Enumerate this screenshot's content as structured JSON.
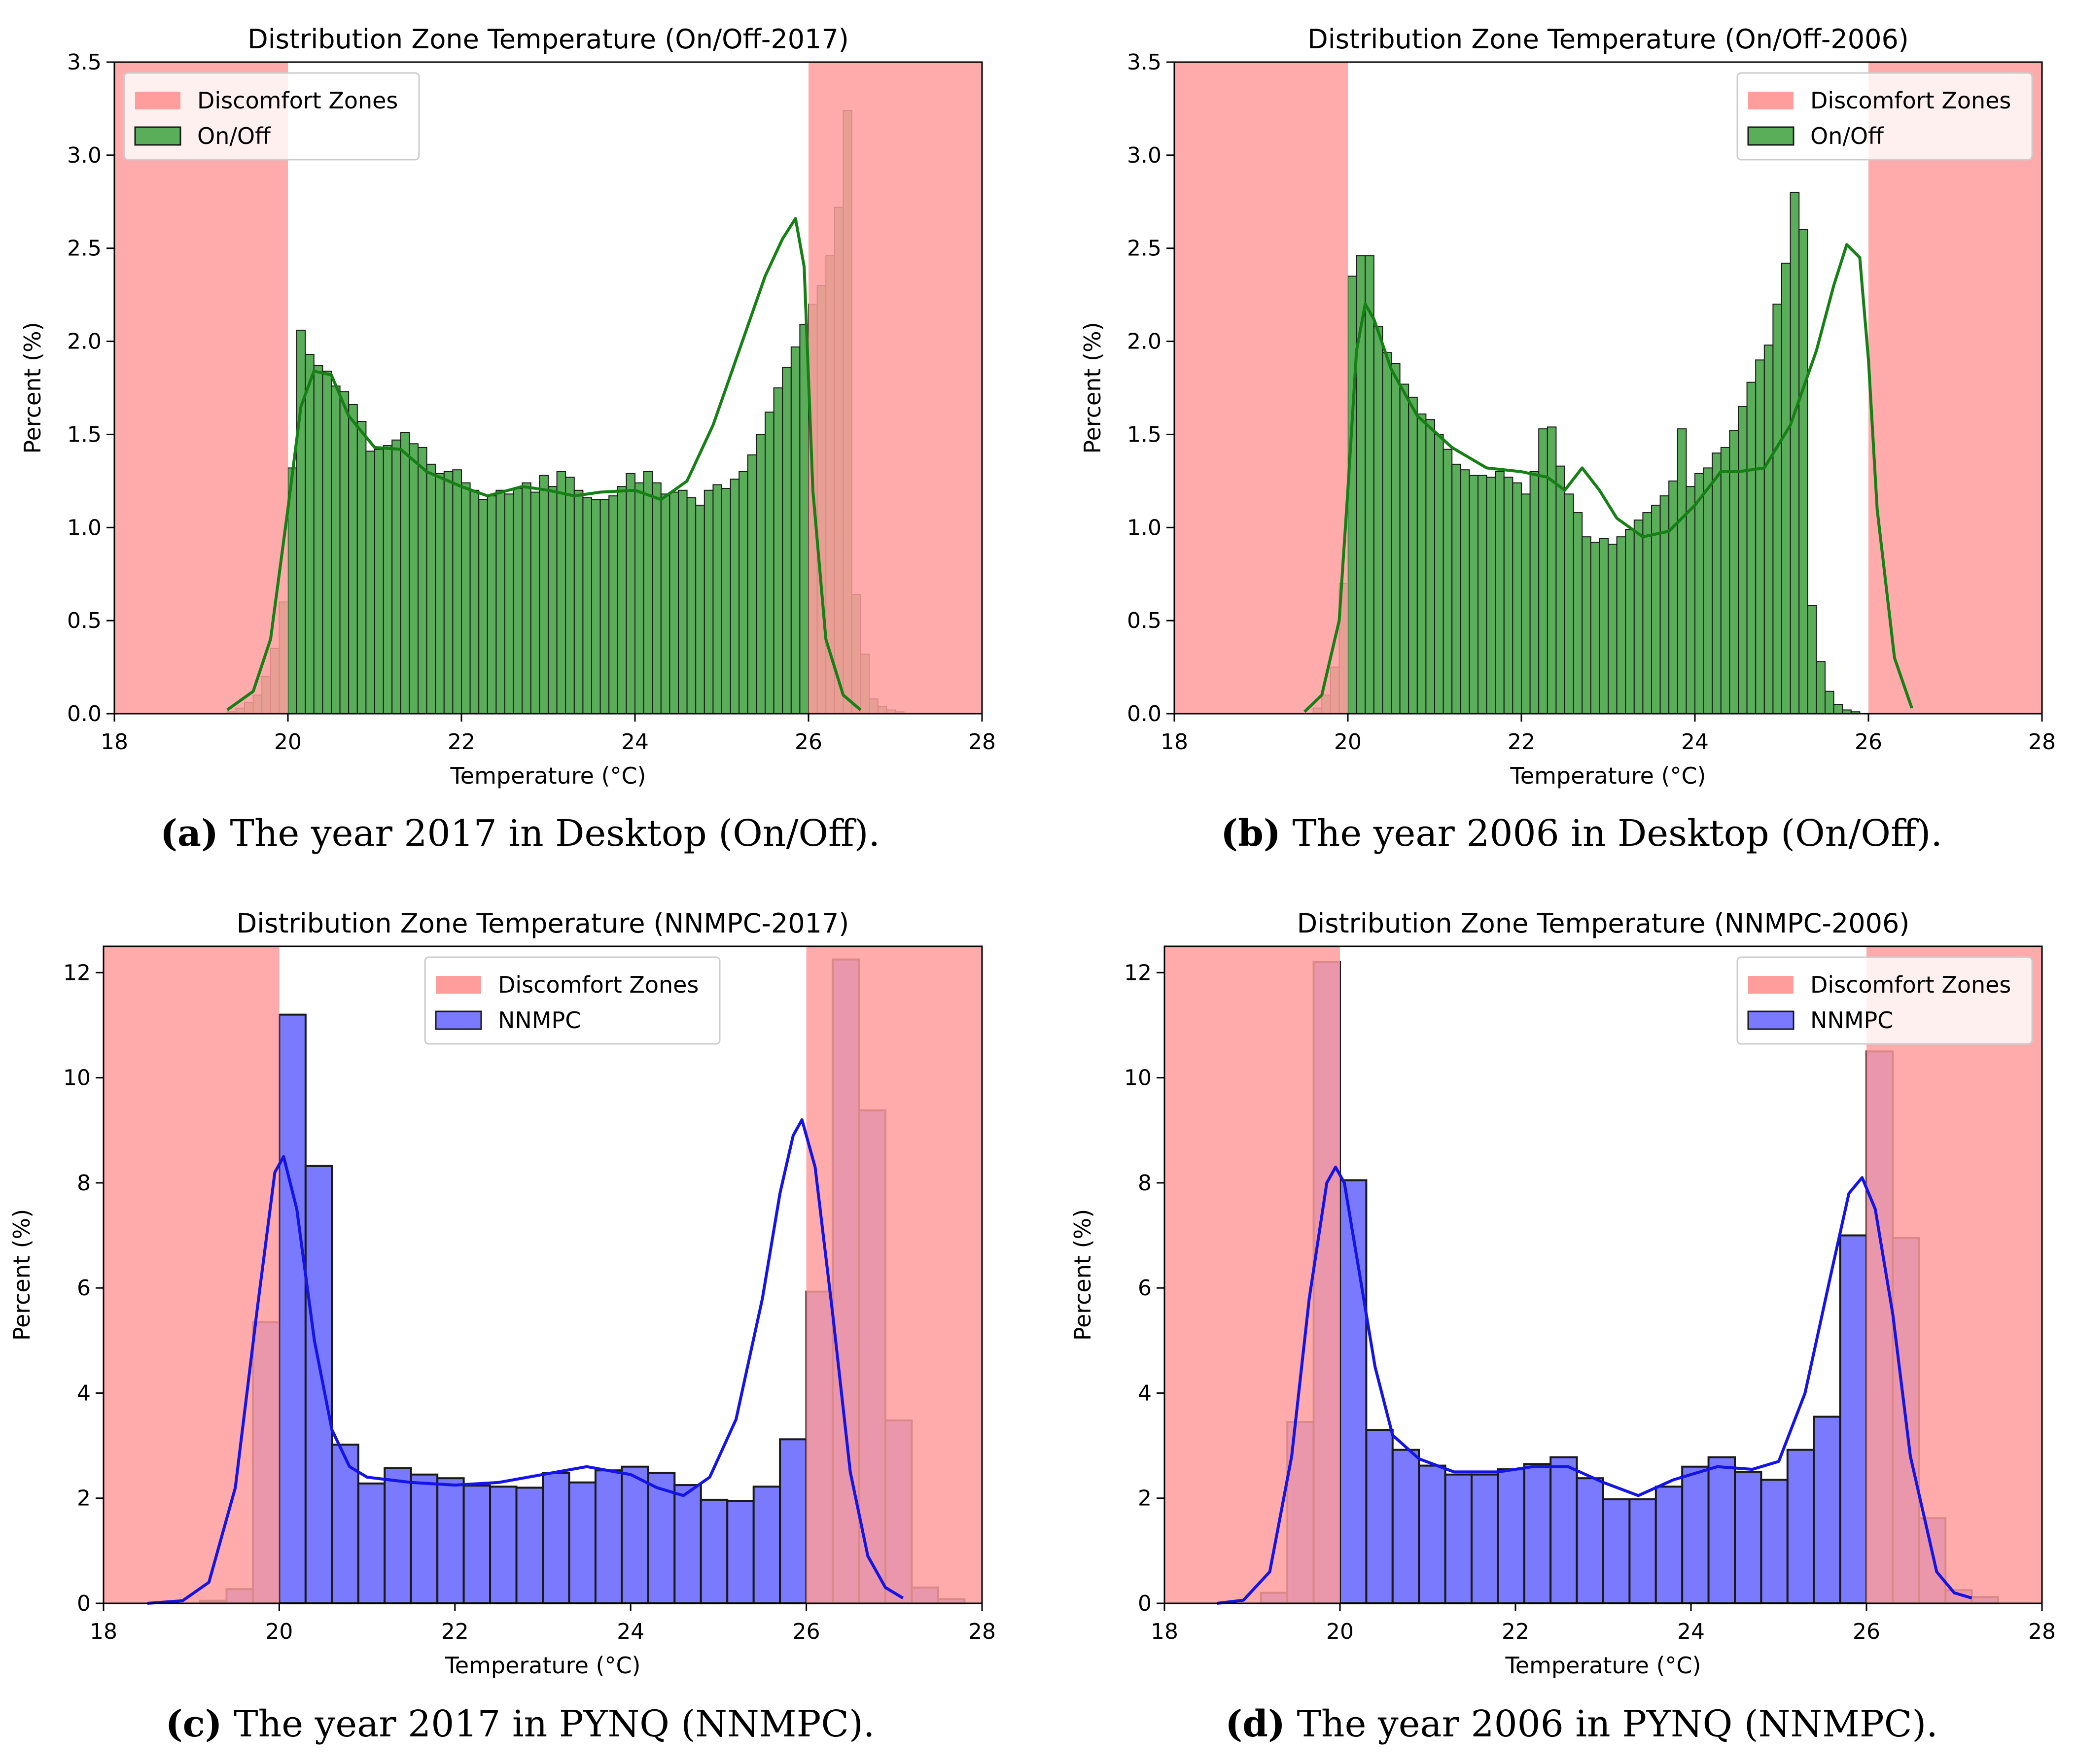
{
  "colors": {
    "zone": "#ff9c9c",
    "onoff_bar": "#5aae5a",
    "onoff_line": "#168016",
    "nnmpc_bar": "#7a7aff",
    "nnmpc_line": "#1414e6"
  },
  "captions": [
    {
      "letter": "(a)",
      "text": " The year 2017 in Desktop (On/Off)."
    },
    {
      "letter": "(b)",
      "text": " The year 2006 in Desktop (On/Off)."
    },
    {
      "letter": "(c)",
      "text": " The year 2017 in PYNQ (NNMPC)."
    },
    {
      "letter": "(d)",
      "text": " The year 2006 in PYNQ (NNMPC)."
    }
  ],
  "chart_data": [
    {
      "id": "a",
      "type": "bar",
      "title": "Distribution Zone Temperature (On/Off-2017)",
      "xlabel": "Temperature (°C)",
      "ylabel": "Percent (%)",
      "xlim": [
        18,
        28
      ],
      "ylim": [
        0,
        3.5
      ],
      "xticks": [
        18,
        20,
        22,
        24,
        26,
        28
      ],
      "yticks": [
        0.0,
        0.5,
        1.0,
        1.5,
        2.0,
        2.5,
        3.0,
        3.5
      ],
      "ytick_labels": [
        "0.0",
        "0.5",
        "1.0",
        "1.5",
        "2.0",
        "2.5",
        "3.0",
        "3.5"
      ],
      "discomfort_zones": [
        [
          18,
          20
        ],
        [
          26,
          28
        ]
      ],
      "legend": {
        "position": "upper-left",
        "zone_label": "Discomfort Zones",
        "series_label": "On/Off"
      },
      "series": "On/Off",
      "bin_start": 19.3,
      "bin_width": 0.1,
      "values": [
        0.01,
        0.03,
        0.06,
        0.1,
        0.2,
        0.35,
        0.6,
        1.32,
        2.06,
        1.93,
        1.87,
        1.84,
        1.76,
        1.73,
        1.66,
        1.57,
        1.41,
        1.42,
        1.44,
        1.47,
        1.51,
        1.45,
        1.43,
        1.34,
        1.29,
        1.3,
        1.31,
        1.24,
        1.2,
        1.15,
        1.17,
        1.2,
        1.18,
        1.21,
        1.24,
        1.19,
        1.28,
        1.22,
        1.3,
        1.27,
        1.2,
        1.16,
        1.15,
        1.15,
        1.17,
        1.22,
        1.29,
        1.24,
        1.3,
        1.24,
        1.18,
        1.19,
        1.2,
        1.16,
        1.12,
        1.2,
        1.23,
        1.21,
        1.26,
        1.3,
        1.39,
        1.5,
        1.62,
        1.75,
        1.86,
        1.97,
        2.09,
        2.2,
        2.3,
        2.46,
        2.72,
        3.24,
        0.64,
        0.32,
        0.08,
        0.04,
        0.02,
        0.01
      ],
      "kde_x": [
        19.3,
        19.6,
        19.8,
        20.0,
        20.15,
        20.3,
        20.5,
        20.7,
        21.0,
        21.3,
        21.6,
        22.0,
        22.3,
        22.7,
        23.0,
        23.3,
        23.6,
        24.0,
        24.3,
        24.6,
        24.9,
        25.2,
        25.5,
        25.7,
        25.85,
        25.95,
        26.05,
        26.2,
        26.4,
        26.6
      ],
      "kde_y": [
        0.02,
        0.12,
        0.4,
        1.1,
        1.65,
        1.84,
        1.82,
        1.6,
        1.43,
        1.42,
        1.3,
        1.22,
        1.17,
        1.22,
        1.2,
        1.17,
        1.19,
        1.2,
        1.15,
        1.25,
        1.55,
        1.95,
        2.35,
        2.55,
        2.66,
        2.4,
        1.2,
        0.4,
        0.1,
        0.02
      ]
    },
    {
      "id": "b",
      "type": "bar",
      "title": "Distribution Zone Temperature (On/Off-2006)",
      "xlabel": "Temperature (°C)",
      "ylabel": "Percent (%)",
      "xlim": [
        18,
        28
      ],
      "ylim": [
        0,
        3.5
      ],
      "xticks": [
        18,
        20,
        22,
        24,
        26,
        28
      ],
      "yticks": [
        0.0,
        0.5,
        1.0,
        1.5,
        2.0,
        2.5,
        3.0,
        3.5
      ],
      "ytick_labels": [
        "0.0",
        "0.5",
        "1.0",
        "1.5",
        "2.0",
        "2.5",
        "3.0",
        "3.5"
      ],
      "discomfort_zones": [
        [
          18,
          20
        ],
        [
          26,
          28
        ]
      ],
      "legend": {
        "position": "upper-right",
        "zone_label": "Discomfort Zones",
        "series_label": "On/Off"
      },
      "series": "On/Off",
      "bin_start": 19.6,
      "bin_width": 0.1,
      "values": [
        0.03,
        0.1,
        0.25,
        0.7,
        2.35,
        2.46,
        2.46,
        2.08,
        1.94,
        1.88,
        1.77,
        1.7,
        1.61,
        1.58,
        1.5,
        1.42,
        1.34,
        1.31,
        1.28,
        1.28,
        1.27,
        1.3,
        1.27,
        1.24,
        1.18,
        1.3,
        1.53,
        1.54,
        1.33,
        1.18,
        1.08,
        0.95,
        0.92,
        0.94,
        0.91,
        0.95,
        0.99,
        1.04,
        1.08,
        1.12,
        1.17,
        1.25,
        1.53,
        1.22,
        1.29,
        1.32,
        1.4,
        1.43,
        1.52,
        1.65,
        1.78,
        1.9,
        1.98,
        2.2,
        2.42,
        2.8,
        2.6,
        0.58,
        0.28,
        0.12,
        0.05,
        0.02,
        0.01
      ],
      "kde_x": [
        19.5,
        19.7,
        19.9,
        20.0,
        20.1,
        20.2,
        20.3,
        20.5,
        20.8,
        21.2,
        21.6,
        22.0,
        22.3,
        22.5,
        22.7,
        22.9,
        23.1,
        23.4,
        23.7,
        24.0,
        24.3,
        24.5,
        24.8,
        25.1,
        25.4,
        25.6,
        25.75,
        25.9,
        26.0,
        26.1,
        26.3,
        26.5
      ],
      "kde_y": [
        0.01,
        0.1,
        0.5,
        1.2,
        1.95,
        2.2,
        2.12,
        1.85,
        1.6,
        1.43,
        1.32,
        1.3,
        1.27,
        1.2,
        1.32,
        1.2,
        1.05,
        0.95,
        0.98,
        1.12,
        1.3,
        1.3,
        1.32,
        1.55,
        1.95,
        2.3,
        2.52,
        2.45,
        1.9,
        1.1,
        0.3,
        0.03
      ]
    },
    {
      "id": "c",
      "type": "bar",
      "title": "Distribution Zone Temperature (NNMPC-2017)",
      "xlabel": "Temperature (°C)",
      "ylabel": "Percent (%)",
      "xlim": [
        18,
        28
      ],
      "ylim": [
        0,
        12.5
      ],
      "xticks": [
        18,
        20,
        22,
        24,
        26,
        28
      ],
      "yticks": [
        0,
        2,
        4,
        6,
        8,
        10,
        12
      ],
      "ytick_labels": [
        "0",
        "2",
        "4",
        "6",
        "8",
        "10",
        "12"
      ],
      "discomfort_zones": [
        [
          18,
          20
        ],
        [
          26,
          28
        ]
      ],
      "legend": {
        "position": "upper-center",
        "zone_label": "Discomfort Zones",
        "series_label": "NNMPC"
      },
      "series": "NNMPC",
      "bin_start": 19.1,
      "bin_width": 0.3,
      "values": [
        0.05,
        0.27,
        5.35,
        11.2,
        8.32,
        3.02,
        2.28,
        2.57,
        2.45,
        2.38,
        2.24,
        2.22,
        2.2,
        2.48,
        2.3,
        2.53,
        2.6,
        2.48,
        2.25,
        1.97,
        1.95,
        2.22,
        3.12,
        5.93,
        12.25,
        9.38,
        3.48,
        0.3,
        0.08
      ],
      "kde_x": [
        18.5,
        18.9,
        19.2,
        19.5,
        19.75,
        19.95,
        20.05,
        20.2,
        20.4,
        20.6,
        20.8,
        21.0,
        21.5,
        22.0,
        22.5,
        23.0,
        23.5,
        24.0,
        24.3,
        24.6,
        24.9,
        25.2,
        25.5,
        25.7,
        25.85,
        25.95,
        26.1,
        26.3,
        26.5,
        26.7,
        26.9,
        27.1
      ],
      "kde_y": [
        0.0,
        0.05,
        0.4,
        2.2,
        5.6,
        8.2,
        8.5,
        7.5,
        5.0,
        3.3,
        2.6,
        2.4,
        2.3,
        2.25,
        2.3,
        2.45,
        2.6,
        2.45,
        2.2,
        2.05,
        2.4,
        3.5,
        5.8,
        7.8,
        8.9,
        9.2,
        8.3,
        5.5,
        2.5,
        0.9,
        0.3,
        0.1
      ]
    },
    {
      "id": "d",
      "type": "bar",
      "title": "Distribution Zone Temperature (NNMPC-2006)",
      "xlabel": "Temperature (°C)",
      "ylabel": "Percent (%)",
      "xlim": [
        18,
        28
      ],
      "ylim": [
        0,
        12.5
      ],
      "xticks": [
        18,
        20,
        22,
        24,
        26,
        28
      ],
      "yticks": [
        0,
        2,
        4,
        6,
        8,
        10,
        12
      ],
      "ytick_labels": [
        "0",
        "2",
        "4",
        "6",
        "8",
        "10",
        "12"
      ],
      "discomfort_zones": [
        [
          18,
          20
        ],
        [
          26,
          28
        ]
      ],
      "legend": {
        "position": "upper-right",
        "zone_label": "Discomfort Zones",
        "series_label": "NNMPC"
      },
      "series": "NNMPC",
      "bin_start": 19.1,
      "bin_width": 0.3,
      "values": [
        0.2,
        3.45,
        12.2,
        8.05,
        3.3,
        2.92,
        2.62,
        2.45,
        2.45,
        2.55,
        2.65,
        2.78,
        2.38,
        1.98,
        1.98,
        2.22,
        2.6,
        2.78,
        2.5,
        2.35,
        2.92,
        3.55,
        7.0,
        10.5,
        6.95,
        1.62,
        0.25,
        0.12
      ],
      "kde_x": [
        18.6,
        18.9,
        19.2,
        19.45,
        19.65,
        19.85,
        19.95,
        20.05,
        20.2,
        20.4,
        20.6,
        20.9,
        21.3,
        21.8,
        22.2,
        22.6,
        23.0,
        23.4,
        23.8,
        24.3,
        24.7,
        25.0,
        25.3,
        25.6,
        25.8,
        25.95,
        26.1,
        26.3,
        26.5,
        26.8,
        27.0,
        27.2
      ],
      "kde_y": [
        0.0,
        0.06,
        0.6,
        2.8,
        5.8,
        8.0,
        8.3,
        8.0,
        6.5,
        4.5,
        3.2,
        2.75,
        2.5,
        2.5,
        2.6,
        2.6,
        2.3,
        2.05,
        2.35,
        2.6,
        2.55,
        2.7,
        4.0,
        6.3,
        7.8,
        8.1,
        7.5,
        5.5,
        2.8,
        0.6,
        0.2,
        0.1
      ]
    }
  ]
}
